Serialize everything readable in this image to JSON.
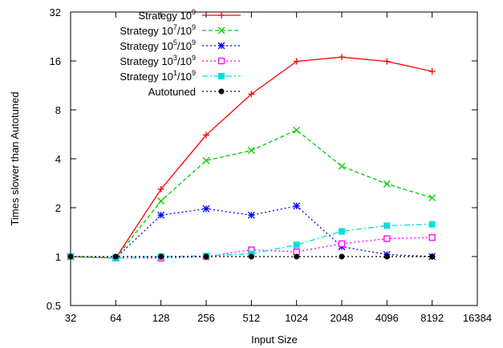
{
  "chart_data": {
    "type": "line",
    "title": "",
    "xlabel": "Input Size",
    "ylabel": "Times slower than Autotuned",
    "xscale": "log2",
    "yscale": "log2",
    "xlim": [
      32,
      16384
    ],
    "ylim": [
      0.5,
      32
    ],
    "xticks": [
      32,
      64,
      128,
      256,
      512,
      1024,
      2048,
      4096,
      8192,
      16384
    ],
    "xtick_labels": [
      "32",
      "64",
      "128",
      "256",
      "512",
      "1024",
      "2048",
      "4096",
      "8192",
      "16384"
    ],
    "yticks": [
      0.5,
      1,
      2,
      4,
      8,
      16,
      32
    ],
    "ytick_labels": [
      "0.5",
      "1",
      "2",
      "4",
      "8",
      "16",
      "32"
    ],
    "grid": false,
    "legend_position": "top-left",
    "x": [
      32,
      64,
      128,
      256,
      512,
      1024,
      2048,
      4096,
      8192
    ],
    "series": [
      {
        "name": "Strategy 10^9",
        "legend_base": "Strategy 10",
        "legend_parts": [
          {
            "exp": "9"
          }
        ],
        "color": "#ff0000",
        "dash": "solid",
        "marker": "plus",
        "values": [
          1.0,
          0.98,
          2.6,
          5.6,
          10.0,
          15.9,
          16.9,
          15.9,
          13.8
        ]
      },
      {
        "name": "Strategy 10^7/10^9",
        "legend_base": "Strategy 10",
        "legend_parts": [
          {
            "exp": "7"
          },
          {
            "text": "/10"
          },
          {
            "exp": "9"
          }
        ],
        "color": "#00cc00",
        "dash": "dashed",
        "marker": "x",
        "values": [
          1.0,
          0.98,
          2.2,
          3.9,
          4.5,
          6.0,
          3.6,
          2.8,
          2.3
        ]
      },
      {
        "name": "Strategy 10^5/10^9",
        "legend_base": "Strategy 10",
        "legend_parts": [
          {
            "exp": "5"
          },
          {
            "text": "/10"
          },
          {
            "exp": "9"
          }
        ],
        "color": "#0000ff",
        "dash": "dotted",
        "marker": "star",
        "values": [
          1.0,
          0.98,
          1.8,
          1.97,
          1.8,
          2.05,
          1.15,
          1.03,
          1.0
        ]
      },
      {
        "name": "Strategy 10^3/10^9",
        "legend_base": "Strategy 10",
        "legend_parts": [
          {
            "exp": "3"
          },
          {
            "text": "/10"
          },
          {
            "exp": "9"
          }
        ],
        "color": "#ff00ff",
        "dash": "dotted",
        "marker": "square-open",
        "values": [
          1.0,
          0.98,
          0.98,
          1.0,
          1.1,
          1.07,
          1.2,
          1.29,
          1.31
        ]
      },
      {
        "name": "Strategy 10^1/10^9",
        "legend_base": "Strategy 10",
        "legend_parts": [
          {
            "exp": "1"
          },
          {
            "text": "/10"
          },
          {
            "exp": "9"
          }
        ],
        "color": "#00e0e0",
        "dash": "dashdot",
        "marker": "square-filled",
        "values": [
          1.0,
          0.98,
          1.0,
          1.01,
          1.04,
          1.18,
          1.43,
          1.55,
          1.58
        ]
      },
      {
        "name": "Autotuned",
        "legend_base": "Autotuned",
        "legend_parts": [],
        "color": "#000000",
        "dash": "dotted",
        "marker": "circle-filled",
        "values": [
          1.0,
          1.0,
          1.0,
          1.0,
          1.0,
          1.0,
          1.0,
          1.0,
          1.0
        ]
      }
    ]
  }
}
